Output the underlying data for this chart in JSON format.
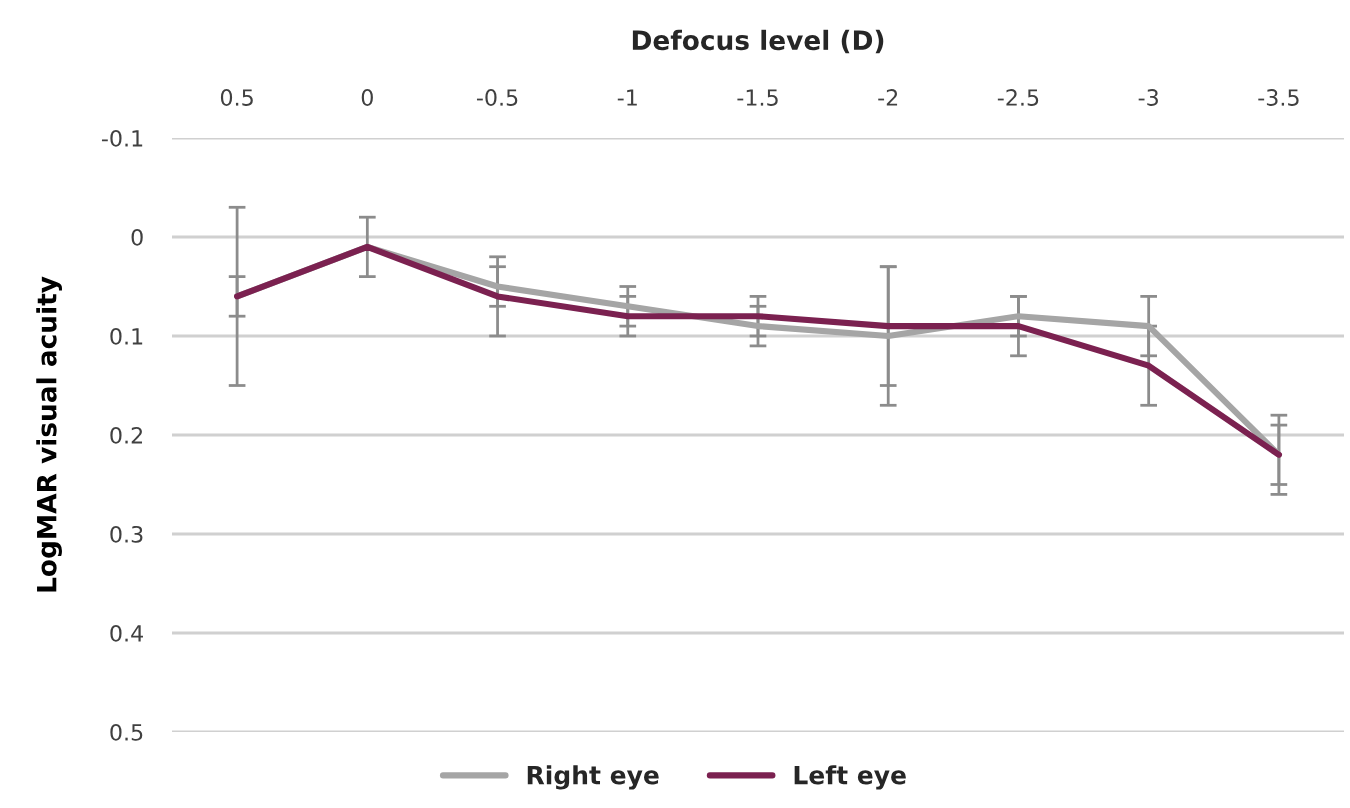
{
  "chart_data": {
    "type": "line",
    "xlabel": "Defocus level (D)",
    "ylabel": "LogMAR visual acuity",
    "categories": [
      "0.5",
      "0",
      "-0.5",
      "-1",
      "-1.5",
      "-2",
      "-2.5",
      "-3",
      "-3.5"
    ],
    "series": [
      {
        "name": "Right eye",
        "color": "#a5a5a5",
        "values": [
          0.06,
          0.01,
          0.05,
          0.07,
          0.09,
          0.1,
          0.08,
          0.09,
          0.22
        ],
        "errors": [
          0.09,
          0.03,
          0.02,
          0.02,
          0.02,
          0.07,
          0.02,
          0.03,
          0.04
        ]
      },
      {
        "name": "Left eye",
        "color": "#7b2150",
        "values": [
          0.06,
          0.01,
          0.06,
          0.08,
          0.08,
          0.09,
          0.09,
          0.13,
          0.22
        ],
        "errors": [
          0.02,
          null,
          0.04,
          0.02,
          0.02,
          0.06,
          0.03,
          0.04,
          0.03
        ]
      }
    ],
    "ylim": [
      0.5,
      -0.1
    ],
    "yticks": [
      -0.1,
      0,
      0.1,
      0.2,
      0.3,
      0.4,
      0.5
    ],
    "grid": "y",
    "legend": "bottom",
    "marker": "none",
    "line_style": "solid"
  }
}
